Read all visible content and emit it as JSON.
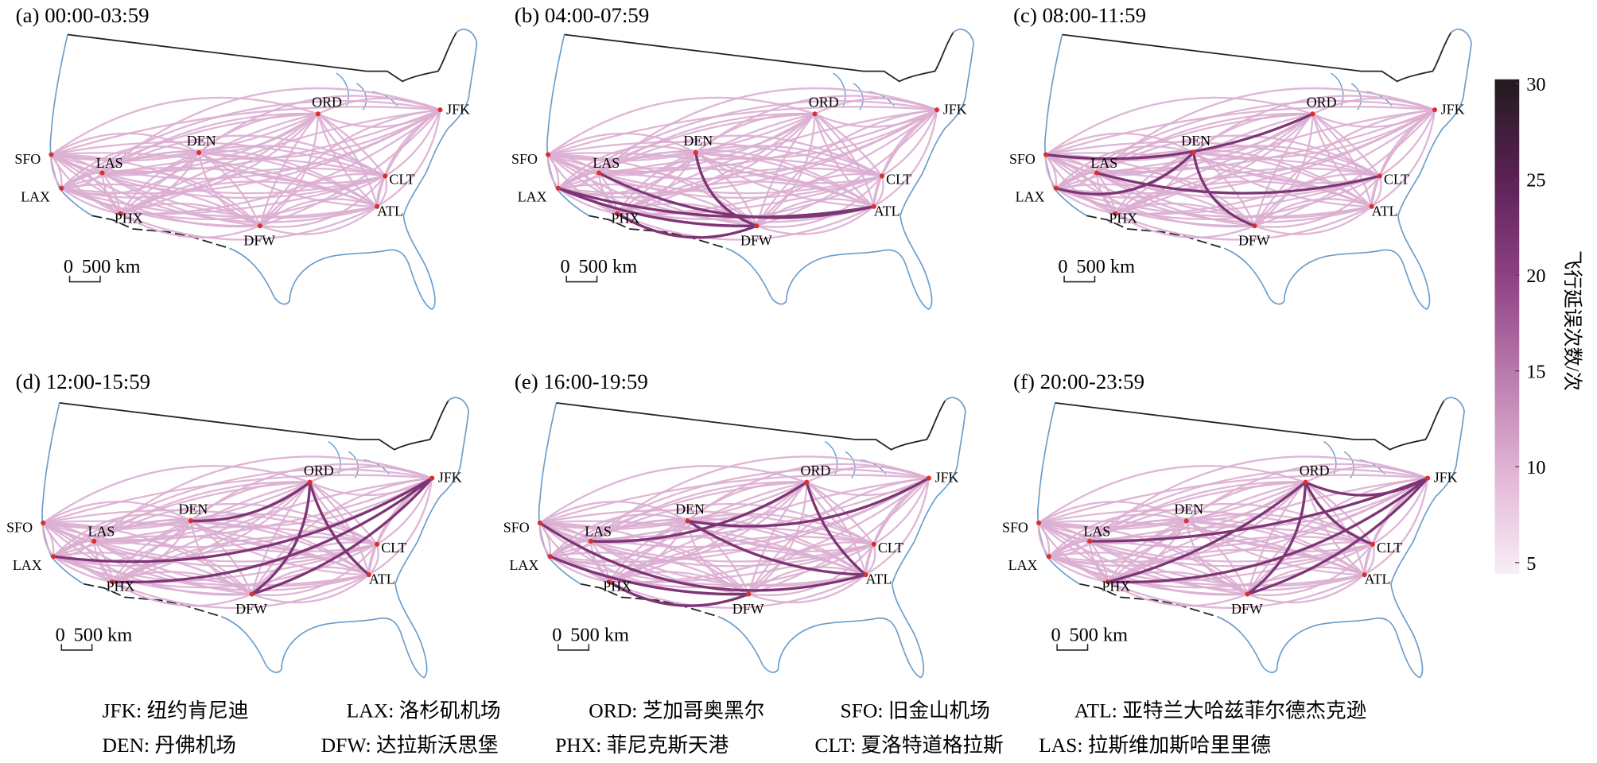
{
  "panels": [
    {
      "title": "(a) 00:00-03:59"
    },
    {
      "title": "(b) 04:00-07:59"
    },
    {
      "title": "(c) 08:00-11:59"
    },
    {
      "title": "(d) 12:00-15:59"
    },
    {
      "title": "(e) 16:00-19:59"
    },
    {
      "title": "(f) 20:00-23:59"
    }
  ],
  "airports": [
    "SFO",
    "LAX",
    "LAS",
    "PHX",
    "DEN",
    "DFW",
    "ORD",
    "JFK",
    "CLT",
    "ATL"
  ],
  "scale_bar": {
    "zero": "0",
    "label": "500 km"
  },
  "colorbar": {
    "title": "飞行延误次数/次",
    "range": [
      5,
      30
    ],
    "ticks": [
      5,
      10,
      15,
      20,
      25,
      30
    ]
  },
  "legend": [
    "JFK: 纽约肯尼迪",
    "LAX: 洛杉矶机场",
    "ORD: 芝加哥奥黑尔",
    "SFO: 旧金山机场",
    "ATL: 亚特兰大哈兹菲尔德杰克逊",
    "DEN: 丹佛机场",
    "DFW: 达拉斯沃思堡",
    "PHX: 菲尼克斯天港",
    "CLT: 夏洛特道格拉斯",
    "LAS: 拉斯维加斯哈里里德"
  ]
}
